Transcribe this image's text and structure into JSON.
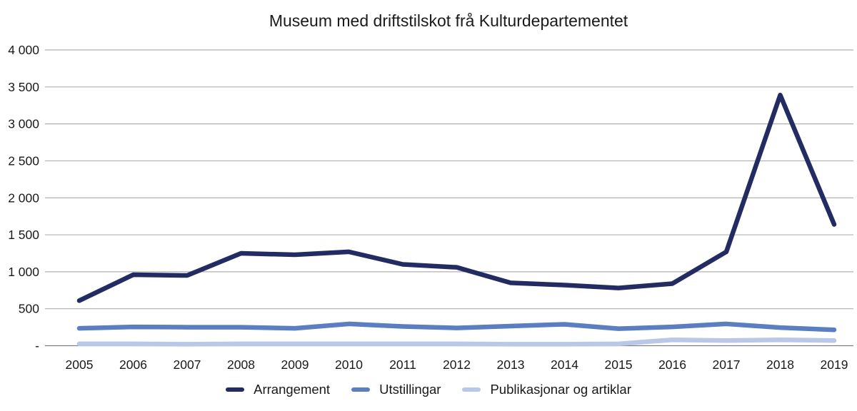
{
  "title": "Museum med driftstilskot frå Kulturdepartementet",
  "colors": {
    "background": "#ffffff",
    "text": "#1a1a1a",
    "gridline": "#b0b0b0",
    "zero_axis": "#7f7f7f",
    "series_arrangement": "#232c62",
    "series_utstillingar": "#5b7ec0",
    "series_publikasjonar": "#b9c8e8"
  },
  "chart_data": {
    "type": "line",
    "title": "Museum med driftstilskot frå Kulturdepartementet",
    "x": [
      "2005",
      "2006",
      "2007",
      "2008",
      "2009",
      "2010",
      "2011",
      "2012",
      "2013",
      "2014",
      "2015",
      "2016",
      "2017",
      "2018",
      "2019"
    ],
    "series": [
      {
        "name": "Arrangement",
        "color": "#232c62",
        "values": [
          610,
          960,
          950,
          1250,
          1230,
          1270,
          1100,
          1060,
          850,
          820,
          780,
          840,
          1270,
          3390,
          1640
        ]
      },
      {
        "name": "Utstillingar",
        "color": "#5b7ec0",
        "values": [
          235,
          255,
          250,
          250,
          235,
          295,
          260,
          240,
          265,
          290,
          230,
          255,
          295,
          245,
          215
        ]
      },
      {
        "name": "Publikasjonar og artiklar",
        "color": "#b9c8e8",
        "values": [
          25,
          25,
          20,
          25,
          25,
          25,
          25,
          25,
          20,
          20,
          25,
          80,
          70,
          80,
          70
        ]
      }
    ],
    "ylim": [
      0,
      4000
    ],
    "y_ticks": [
      "4 000",
      "3 500",
      "3 000",
      "2 500",
      "2 000",
      "1 500",
      "1 000",
      "500",
      "-"
    ],
    "y_tick_values": [
      4000,
      3500,
      3000,
      2500,
      2000,
      1500,
      1000,
      500,
      0
    ],
    "grid": "horizontal",
    "legend_position": "bottom"
  }
}
